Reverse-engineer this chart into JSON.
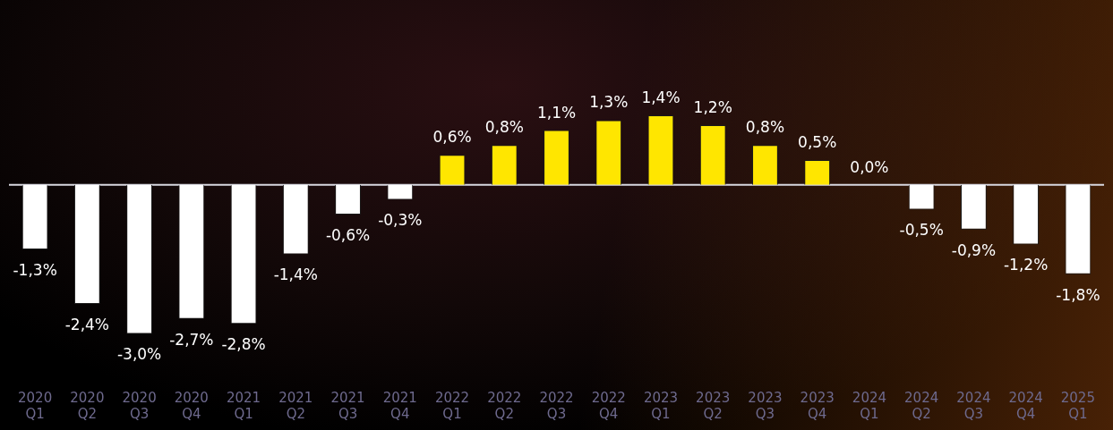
{
  "chart_data": {
    "type": "bar",
    "categories": [
      "2020 Q1",
      "2020 Q2",
      "2020 Q3",
      "2020 Q4",
      "2021 Q1",
      "2021 Q2",
      "2021 Q3",
      "2021 Q4",
      "2022 Q1",
      "2022 Q2",
      "2022 Q3",
      "2022 Q4",
      "2023 Q1",
      "2023 Q2",
      "2023 Q3",
      "2023 Q4",
      "2024 Q1",
      "2024 Q2",
      "2024 Q3",
      "2024 Q4",
      "2025 Q1"
    ],
    "values": [
      -1.3,
      -2.4,
      -3.0,
      -2.7,
      -2.8,
      -1.4,
      -0.6,
      -0.3,
      0.6,
      0.8,
      1.1,
      1.3,
      1.4,
      1.2,
      0.8,
      0.5,
      0.0,
      -0.5,
      -0.9,
      -1.2,
      -1.8
    ],
    "colors": [
      "#ffffff",
      "#ffffff",
      "#ffffff",
      "#ffffff",
      "#ffffff",
      "#ffffff",
      "#ffffff",
      "#ffffff",
      "#ffe600",
      "#ffe600",
      "#ffe600",
      "#ffe600",
      "#ffe600",
      "#ffe600",
      "#ffe600",
      "#ffe600",
      "#ffe600",
      "#ffffff",
      "#ffffff",
      "#ffffff",
      "#ffffff"
    ],
    "value_labels": [
      "-1,3%",
      "-2,4%",
      "-3,0%",
      "-2,7%",
      "-2,8%",
      "-1,4%",
      "-0,6%",
      "-0,3%",
      "0,6%",
      "0,8%",
      "1,1%",
      "1,3%",
      "1,4%",
      "1,2%",
      "0,8%",
      "0,5%",
      "0,0%",
      "-0,5%",
      "-0,9%",
      "-1,2%",
      "-1,8%"
    ],
    "ref_lines": [
      {
        "axis": "y",
        "value": 0,
        "color": "#d8d8e0"
      }
    ],
    "grid": false,
    "legend": false
  }
}
